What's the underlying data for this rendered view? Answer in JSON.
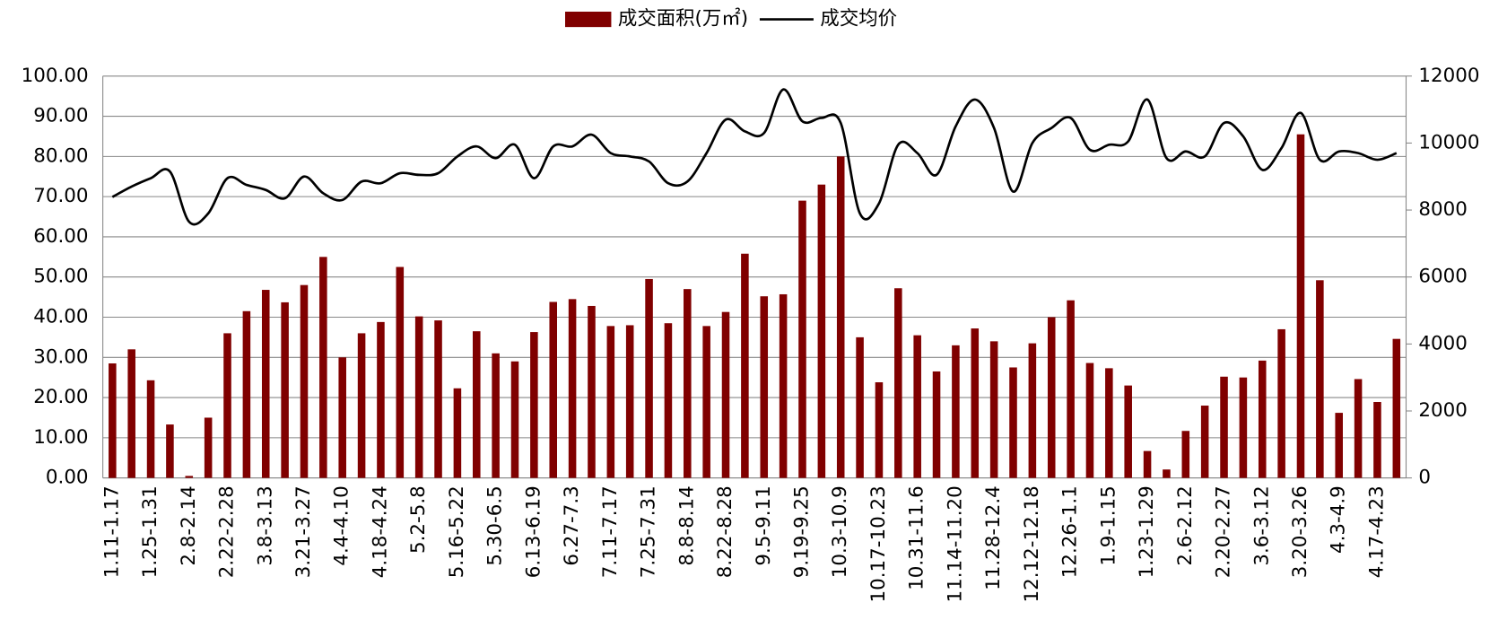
{
  "chart_data": {
    "type": "bar_line",
    "categories": [
      "1.11-1.17",
      null,
      "1.25-1.31",
      null,
      "2.8-2.14",
      null,
      "2.22-2.28",
      null,
      "3.8-3.13",
      null,
      "3.21-3.27",
      null,
      "4.4-4.10",
      null,
      "4.18-4.24",
      null,
      "5.2-5.8",
      null,
      "5.16-5.22",
      null,
      "5.30-6.5",
      null,
      "6.13-6.19",
      null,
      "6.27-7.3",
      null,
      "7.11-7.17",
      null,
      "7.25-7.31",
      null,
      "8.8-8.14",
      null,
      "8.22-8.28",
      null,
      "9.5-9.11",
      null,
      "9.19-9.25",
      null,
      "10.3-10.9",
      null,
      "10.17-10.23",
      null,
      "10.31-11.6",
      null,
      "11.14-11.20",
      null,
      "11.28-12.4",
      null,
      "12.12-12.18",
      null,
      "12.26-1.1",
      null,
      "1.9-1.15",
      null,
      "1.23-1.29",
      null,
      "2.6-2.12",
      null,
      "2.20-2.27",
      null,
      "3.6-3.12",
      null,
      "3.20-3.26",
      null,
      "4.3-4.9",
      null,
      "4.17-4.23",
      null
    ],
    "series": [
      {
        "name": "成交面积(万㎡)",
        "color": "#800000",
        "type": "bar",
        "values": [
          28.5,
          32,
          24.3,
          13.3,
          0.5,
          15,
          36,
          41.5,
          46.8,
          43.7,
          48,
          55,
          30,
          36,
          38.8,
          52.5,
          40.2,
          39.2,
          22.3,
          36.5,
          31,
          29,
          36.3,
          43.8,
          44.5,
          42.8,
          37.8,
          38,
          49.5,
          38.5,
          47,
          37.8,
          41.3,
          55.8,
          45.2,
          45.7,
          69,
          73,
          80,
          35,
          23.8,
          47.2,
          35.5,
          26.5,
          33,
          37.2,
          34,
          27.5,
          33.5,
          40,
          44.2,
          28.6,
          27.3,
          23,
          6.7,
          2.1,
          11.7,
          18,
          25.2,
          25,
          29.2,
          37,
          85.5,
          49.2,
          16.2,
          24.6,
          18.9,
          34.6
        ]
      },
      {
        "name": "成交均价",
        "color": "#000000",
        "type": "line",
        "axis": "y2",
        "values": [
          8390,
          8700,
          8950,
          9150,
          7650,
          7900,
          8950,
          8750,
          8600,
          8350,
          9000,
          8500,
          8300,
          8850,
          8800,
          9100,
          9050,
          9100,
          9600,
          9900,
          9550,
          9950,
          8950,
          9900,
          9900,
          10250,
          9700,
          9600,
          9450,
          8800,
          8850,
          9700,
          10700,
          10350,
          10300,
          11600,
          10650,
          10750,
          10600,
          7900,
          8200,
          9950,
          9700,
          9050,
          10500,
          11300,
          10450,
          8550,
          10000,
          10450,
          10750,
          9800,
          9950,
          10050,
          11300,
          9550,
          9750,
          9600,
          10600,
          10200,
          9200,
          9850,
          10900,
          9500,
          9750,
          9700,
          9500,
          9700
        ]
      }
    ],
    "ylim": [
      0,
      100
    ],
    "yticks": [
      {
        "value": 0,
        "label": "0.00"
      },
      {
        "value": 10,
        "label": "10.00"
      },
      {
        "value": 20,
        "label": "20.00"
      },
      {
        "value": 30,
        "label": "30.00"
      },
      {
        "value": 40,
        "label": "40.00"
      },
      {
        "value": 50,
        "label": "50.00"
      },
      {
        "value": 60,
        "label": "60.00"
      },
      {
        "value": 70,
        "label": "70.00"
      },
      {
        "value": 80,
        "label": "80.00"
      },
      {
        "value": 90,
        "label": "90.00"
      },
      {
        "value": 100,
        "label": "100.00"
      }
    ],
    "y2lim": [
      0,
      12000
    ],
    "y2ticks": [
      0,
      2000,
      4000,
      6000,
      8000,
      10000,
      12000
    ],
    "grid": true,
    "legend": "top"
  }
}
